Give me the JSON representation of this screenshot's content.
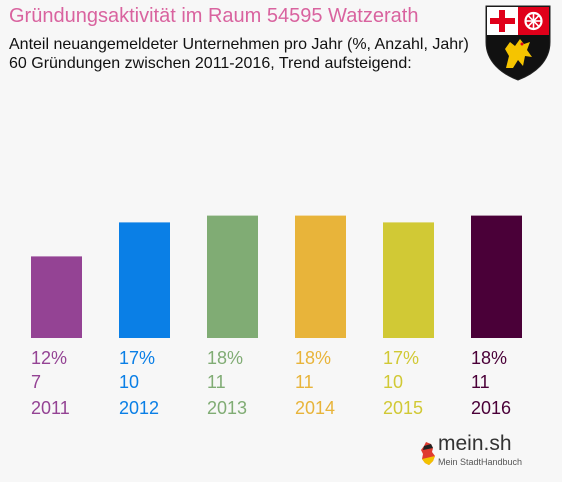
{
  "header": {
    "title": "Gründungsaktivität im Raum 54595 Watzerath",
    "subtitle_line1": "Anteil neuangemeldeter Unternehmen pro Jahr (%, Anzahl, Jahr)",
    "subtitle_line2": "60 Gründungen zwischen 2011-2016, Trend aufsteigend:"
  },
  "chart_data": {
    "type": "bar",
    "categories": [
      "2011",
      "2012",
      "2013",
      "2014",
      "2015",
      "2016"
    ],
    "values": [
      12,
      17,
      18,
      18,
      17,
      18
    ],
    "percent_labels": [
      "12%",
      "17%",
      "18%",
      "18%",
      "17%",
      "18%"
    ],
    "counts": [
      "7",
      "10",
      "11",
      "11",
      "10",
      "11"
    ],
    "colors": [
      "#944394",
      "#0a7fe6",
      "#80ac74",
      "#e8b43a",
      "#d1c935",
      "#4a0038"
    ],
    "grid": false,
    "legend": "none"
  },
  "branding": {
    "logo_text": "mein.sh",
    "logo_subtext": "Mein StadtHandbuch"
  },
  "icons": {
    "coat_of_arms": "rhineland-palatinate-coat-of-arms-icon",
    "logo_map": "germany-map-icon"
  }
}
